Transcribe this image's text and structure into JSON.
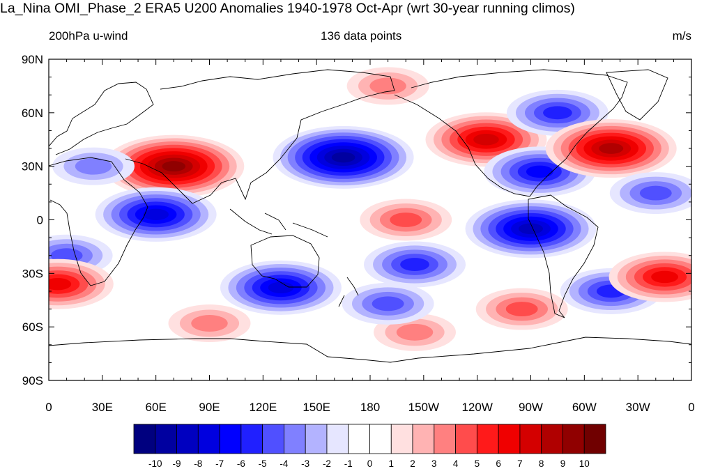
{
  "title": "La_Nina OMI_Phase_2 ERA5 U200 Anomalies 1940-1978 Oct-Apr (wrt 30-year running climos)",
  "left_string": "200hPa u-wind",
  "center_string": "136 data points",
  "right_string": "m/s",
  "lat_labels": [
    "90N",
    "60N",
    "30N",
    "0",
    "30S",
    "60S",
    "90S"
  ],
  "lon_labels": [
    "0",
    "30E",
    "60E",
    "90E",
    "120E",
    "150E",
    "180",
    "150W",
    "120W",
    "90W",
    "60W",
    "30W",
    "0"
  ],
  "colorbar": {
    "labels": [
      "-10",
      "-9",
      "-8",
      "-7",
      "-6",
      "-5",
      "-4",
      "-3",
      "-2",
      "-1",
      "0",
      "1",
      "2",
      "3",
      "4",
      "5",
      "6",
      "7",
      "8",
      "9",
      "10"
    ],
    "colors": [
      "#00007f",
      "#0000a0",
      "#0000c0",
      "#0000df",
      "#0000ff",
      "#2020ff",
      "#5050ff",
      "#8080ff",
      "#b3b3ff",
      "#e6e6ff",
      "#ffffff",
      "#ffffff",
      "#ffe0e0",
      "#ffb3b3",
      "#ff8080",
      "#ff4c4c",
      "#ff1a1a",
      "#f00000",
      "#d40000",
      "#b00000",
      "#900000",
      "#700000"
    ]
  },
  "chart_data": {
    "type": "heatmap",
    "variable": "U200 anomaly",
    "units": "m/s",
    "projection": "cylindrical-equidistant",
    "lon_range": [
      0,
      360
    ],
    "lat_range": [
      -90,
      90
    ],
    "contour_levels": [
      -10,
      -9,
      -8,
      -7,
      -6,
      -5,
      -4,
      -3,
      -2,
      -1,
      0,
      1,
      2,
      3,
      4,
      5,
      6,
      7,
      8,
      9,
      10
    ],
    "features": [
      {
        "lon": 70,
        "lat": 30,
        "value": 9
      },
      {
        "lon": 60,
        "lat": 3,
        "value": -7
      },
      {
        "lon": 10,
        "lat": -20,
        "value": -4
      },
      {
        "lon": 5,
        "lat": -36,
        "value": 6
      },
      {
        "lon": 130,
        "lat": -38,
        "value": -7
      },
      {
        "lon": 165,
        "lat": 35,
        "value": -9
      },
      {
        "lon": 200,
        "lat": 0,
        "value": 4
      },
      {
        "lon": 205,
        "lat": -25,
        "value": -5
      },
      {
        "lon": 190,
        "lat": 75,
        "value": 3
      },
      {
        "lon": 245,
        "lat": 45,
        "value": 7
      },
      {
        "lon": 275,
        "lat": 27,
        "value": -6
      },
      {
        "lon": 270,
        "lat": -5,
        "value": -8
      },
      {
        "lon": 285,
        "lat": 60,
        "value": -5
      },
      {
        "lon": 315,
        "lat": 40,
        "value": 8
      },
      {
        "lon": 315,
        "lat": -40,
        "value": -5
      },
      {
        "lon": 345,
        "lat": -32,
        "value": 6
      },
      {
        "lon": 265,
        "lat": -50,
        "value": 4
      },
      {
        "lon": 90,
        "lat": -58,
        "value": 3
      },
      {
        "lon": 205,
        "lat": -63,
        "value": 3
      },
      {
        "lon": 190,
        "lat": -47,
        "value": -4
      },
      {
        "lon": 340,
        "lat": 15,
        "value": -4
      },
      {
        "lon": 25,
        "lat": 30,
        "value": -3
      }
    ]
  }
}
